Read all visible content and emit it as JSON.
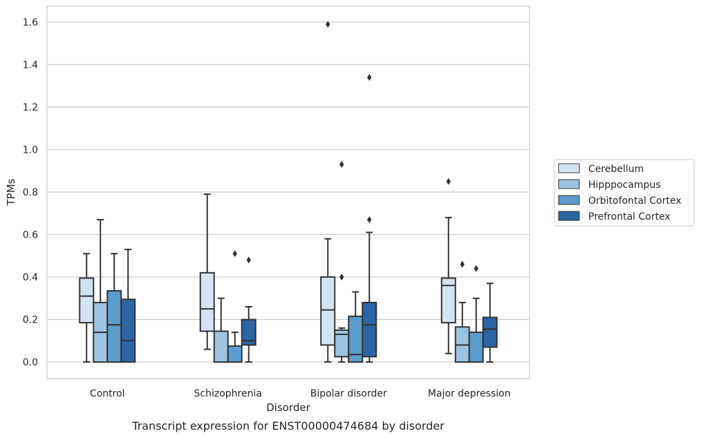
{
  "chart_data": {
    "type": "box",
    "title": "",
    "caption": "Transcript expression for ENST00000474684 by disorder",
    "xlabel": "Disorder",
    "ylabel": "TPMs",
    "ylim": [
      -0.08,
      1.67
    ],
    "yticks": [
      "0.0",
      "0.2",
      "0.4",
      "0.6",
      "0.8",
      "1.0",
      "1.2",
      "1.4",
      "1.6"
    ],
    "grid": "horizontal",
    "legend_position": "right",
    "categories": [
      "Control",
      "Schizophrenia",
      "Bipolar disorder",
      "Major depression"
    ],
    "series": [
      {
        "name": "Cerebellum",
        "color": "#d4e3f2",
        "boxes": [
          {
            "whisker_low": 0.0,
            "q1": 0.185,
            "median": 0.31,
            "q3": 0.395,
            "whisker_high": 0.51,
            "outliers": []
          },
          {
            "whisker_low": 0.06,
            "q1": 0.145,
            "median": 0.25,
            "q3": 0.42,
            "whisker_high": 0.79,
            "outliers": []
          },
          {
            "whisker_low": 0.0,
            "q1": 0.08,
            "median": 0.245,
            "q3": 0.4,
            "whisker_high": 0.58,
            "outliers": [
              1.59
            ]
          },
          {
            "whisker_low": 0.04,
            "q1": 0.185,
            "median": 0.36,
            "q3": 0.395,
            "whisker_high": 0.68,
            "outliers": [
              0.85
            ]
          }
        ]
      },
      {
        "name": "Hipppocampus",
        "color": "#9cc4e0",
        "boxes": [
          {
            "whisker_low": 0.0,
            "q1": 0.0,
            "median": 0.14,
            "q3": 0.28,
            "whisker_high": 0.67,
            "outliers": []
          },
          {
            "whisker_low": 0.0,
            "q1": 0.0,
            "median": 0.0,
            "q3": 0.145,
            "whisker_high": 0.3,
            "outliers": []
          },
          {
            "whisker_low": 0.0,
            "q1": 0.025,
            "median": 0.13,
            "q3": 0.15,
            "whisker_high": 0.16,
            "outliers": [
              0.4,
              0.93
            ]
          },
          {
            "whisker_low": 0.0,
            "q1": 0.0,
            "median": 0.08,
            "q3": 0.165,
            "whisker_high": 0.28,
            "outliers": [
              0.46
            ]
          }
        ]
      },
      {
        "name": "Orbitofontal Cortex",
        "color": "#5a9ccc",
        "boxes": [
          {
            "whisker_low": 0.0,
            "q1": 0.0,
            "median": 0.175,
            "q3": 0.335,
            "whisker_high": 0.51,
            "outliers": []
          },
          {
            "whisker_low": 0.0,
            "q1": 0.0,
            "median": 0.0,
            "q3": 0.075,
            "whisker_high": 0.14,
            "outliers": [
              0.51
            ]
          },
          {
            "whisker_low": 0.0,
            "q1": 0.0,
            "median": 0.035,
            "q3": 0.215,
            "whisker_high": 0.33,
            "outliers": []
          },
          {
            "whisker_low": 0.0,
            "q1": 0.0,
            "median": 0.0,
            "q3": 0.14,
            "whisker_high": 0.3,
            "outliers": [
              0.44
            ]
          }
        ]
      },
      {
        "name": "Prefrontal Cortex",
        "color": "#2a65a5",
        "boxes": [
          {
            "whisker_low": 0.0,
            "q1": 0.0,
            "median": 0.1,
            "q3": 0.295,
            "whisker_high": 0.53,
            "outliers": []
          },
          {
            "whisker_low": 0.0,
            "q1": 0.08,
            "median": 0.1,
            "q3": 0.2,
            "whisker_high": 0.26,
            "outliers": [
              0.48
            ]
          },
          {
            "whisker_low": 0.0,
            "q1": 0.025,
            "median": 0.175,
            "q3": 0.28,
            "whisker_high": 0.61,
            "outliers": [
              0.67,
              1.34
            ]
          },
          {
            "whisker_low": 0.0,
            "q1": 0.07,
            "median": 0.155,
            "q3": 0.21,
            "whisker_high": 0.37,
            "outliers": []
          }
        ]
      }
    ]
  }
}
